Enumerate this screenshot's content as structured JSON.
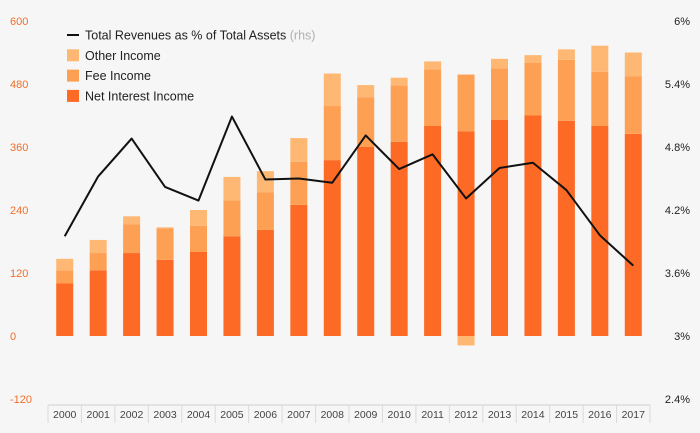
{
  "chart_data": {
    "type": "bar",
    "stacked": true,
    "categories": [
      "2000",
      "2001",
      "2002",
      "2003",
      "2004",
      "2005",
      "2006",
      "2007",
      "2008",
      "2009",
      "2010",
      "2011",
      "2012",
      "2013",
      "2014",
      "2015",
      "2016",
      "2017"
    ],
    "series": [
      {
        "name": "Net Interest Income",
        "color": "#fd6a25",
        "values": [
          100,
          125,
          158,
          145,
          160,
          190,
          202,
          250,
          335,
          360,
          370,
          400,
          390,
          412,
          420,
          410,
          400,
          385
        ]
      },
      {
        "name": "Fee Income",
        "color": "#fda054",
        "values": [
          25,
          33,
          55,
          60,
          50,
          68,
          72,
          82,
          103,
          95,
          107,
          108,
          108,
          98,
          100,
          116,
          103,
          110
        ]
      },
      {
        "name": "Other Income",
        "color": "#feb874",
        "values": [
          22,
          25,
          15,
          2,
          30,
          45,
          40,
          45,
          62,
          23,
          15,
          15,
          -18,
          18,
          15,
          20,
          50,
          45
        ]
      }
    ],
    "line_series": {
      "name": "Total Revenues as % of Total Assets",
      "axis": "right",
      "color": "#111111",
      "values": [
        3.95,
        4.52,
        4.88,
        4.42,
        4.29,
        5.09,
        4.49,
        4.5,
        4.46,
        4.91,
        4.59,
        4.73,
        4.31,
        4.6,
        4.65,
        4.39,
        3.96,
        3.67
      ]
    },
    "y_left": {
      "min": -120,
      "max": 600,
      "ticks": [
        "600",
        "480",
        "360",
        "240",
        "120",
        "0",
        "-120"
      ],
      "color": "#ef6f2b"
    },
    "y_right": {
      "min": 2.4,
      "max": 6.0,
      "ticks": [
        "6%",
        "5.4%",
        "4.8%",
        "4.2%",
        "3.6%",
        "3%",
        "2.4%"
      ]
    },
    "legend": [
      {
        "kind": "line",
        "label": "Total Revenues as % of Total Assets",
        "note": "(rhs)"
      },
      {
        "kind": "box",
        "label": "Other Income"
      },
      {
        "kind": "box",
        "label": "Fee Income"
      },
      {
        "kind": "box",
        "label": "Net Interest Income"
      }
    ],
    "legend_position": "top-left",
    "grid": false
  }
}
